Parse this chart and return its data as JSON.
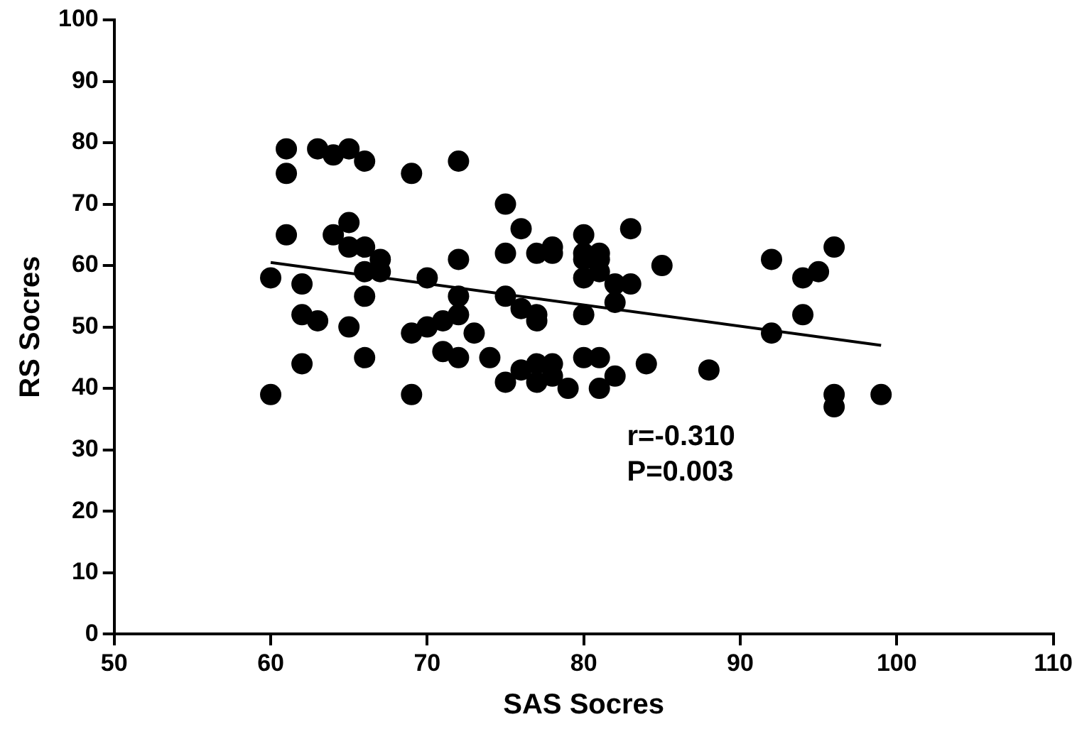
{
  "chart_data": {
    "type": "scatter",
    "xlabel": "SAS Socres",
    "ylabel": "RS Socres",
    "xlim": [
      50,
      110
    ],
    "xticks": [
      50,
      60,
      70,
      80,
      90,
      100,
      110
    ],
    "ylim": [
      0,
      100
    ],
    "yticks": [
      0,
      10,
      20,
      30,
      40,
      50,
      60,
      70,
      80,
      90,
      100
    ],
    "grid": false,
    "legend": false,
    "marker": "circle",
    "annotations": [
      "r=-0.310",
      "P=0.003"
    ],
    "series": [
      {
        "color": "#000000",
        "x": [
          60,
          60,
          61,
          61,
          61,
          62,
          62,
          62,
          63,
          63,
          64,
          64,
          65,
          65,
          65,
          65,
          66,
          66,
          66,
          66,
          66,
          67,
          67,
          69,
          69,
          69,
          70,
          70,
          71,
          71,
          72,
          72,
          72,
          72,
          72,
          73,
          74,
          75,
          75,
          75,
          75,
          76,
          76,
          76,
          77,
          77,
          77,
          77,
          77,
          78,
          78,
          78,
          78,
          79,
          80,
          80,
          80,
          80,
          80,
          80,
          81,
          81,
          81,
          81,
          81,
          82,
          82,
          82,
          83,
          83,
          84,
          85,
          88,
          92,
          92,
          94,
          94,
          95,
          96,
          96,
          96,
          99
        ],
        "values": [
          58,
          39,
          79,
          75,
          65,
          57,
          52,
          44,
          79,
          51,
          78,
          65,
          79,
          67,
          63,
          50,
          77,
          63,
          59,
          55,
          45,
          61,
          59,
          75,
          49,
          39,
          58,
          50,
          51,
          46,
          77,
          61,
          55,
          52,
          45,
          49,
          45,
          70,
          62,
          55,
          41,
          66,
          53,
          43,
          62,
          52,
          51,
          44,
          41,
          63,
          62,
          44,
          42,
          40,
          65,
          62,
          61,
          58,
          52,
          45,
          62,
          61,
          59,
          45,
          40,
          57,
          54,
          42,
          66,
          57,
          44,
          60,
          43,
          61,
          49,
          58,
          52,
          59,
          63,
          39,
          37,
          39
        ]
      },
      {
        "type": "line",
        "color": "#000000",
        "x": [
          60,
          99
        ],
        "values": [
          60.5,
          47
        ],
        "marker": "none"
      }
    ]
  }
}
